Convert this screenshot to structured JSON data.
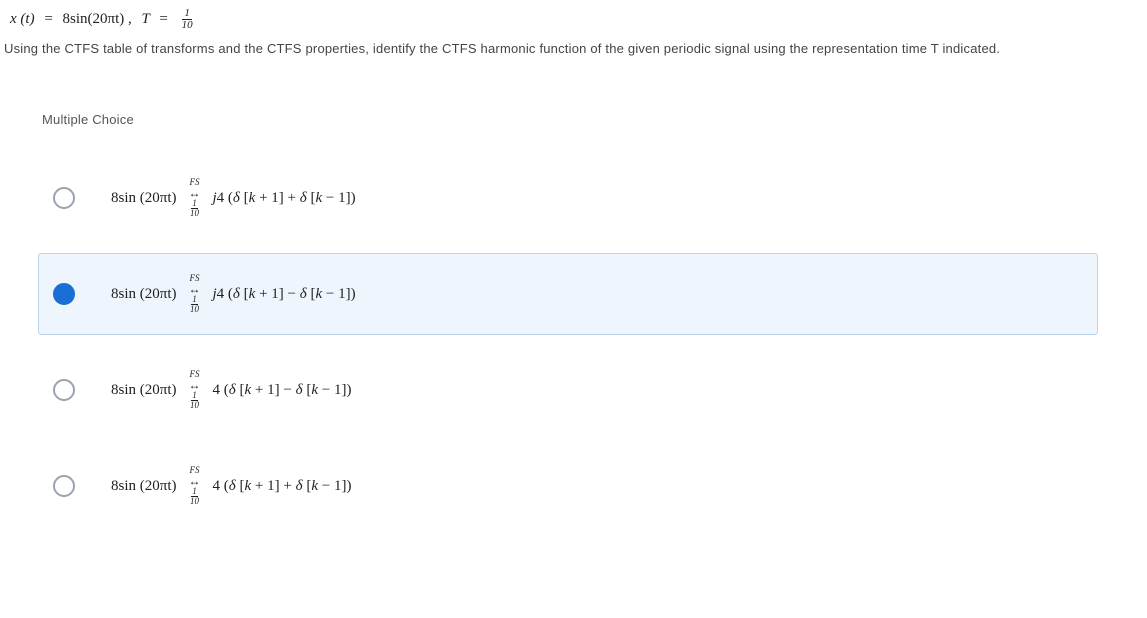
{
  "equation": {
    "lhs": "x (t)",
    "eq1": "=",
    "func": "8sin(20πt) ,",
    "T": "T",
    "eq2": "=",
    "frac_num": "1",
    "frac_den": "10"
  },
  "prompt": "Using the CTFS table of transforms and the CTFS properties, identify the CTFS harmonic function of the given periodic signal using the representation time T indicated.",
  "mc_header": "Multiple Choice",
  "fs_label": "FS",
  "fs_arrow": "↔",
  "fs_frac_num": "1",
  "fs_frac_den": "10",
  "options": [
    {
      "left": "8sin (20πt)",
      "right": "j4 (δ [k + 1] + δ [k − 1])",
      "selected": false
    },
    {
      "left": "8sin (20πt)",
      "right": "j4 (δ [k + 1] − δ [k − 1])",
      "selected": true
    },
    {
      "left": "8sin (20πt)",
      "right": "4 (δ [k + 1] − δ [k − 1])",
      "selected": false
    },
    {
      "left": "8sin (20πt)",
      "right": "4 (δ [k + 1] + δ [k − 1])",
      "selected": false
    }
  ],
  "colors": {
    "selected_bg": "#eef5fc",
    "selected_border": "#b9d4ec",
    "radio_unselected": "#9aa3ad",
    "radio_selected": "#1a6fd6",
    "text": "#333333",
    "background": "#ffffff"
  }
}
